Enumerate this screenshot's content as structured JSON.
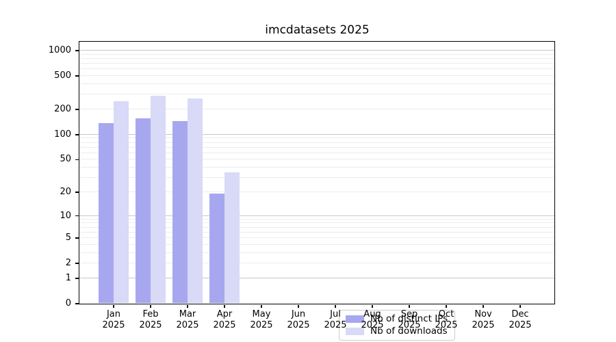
{
  "title": "imcdatasets 2025",
  "chart_data": {
    "type": "bar",
    "title": "imcdatasets 2025",
    "y_scale": "log10(value+1)",
    "ylim": [
      0,
      1270
    ],
    "y_ticks": [
      0,
      1,
      2,
      5,
      10,
      20,
      50,
      100,
      200,
      500,
      1000
    ],
    "categories": [
      "Jan",
      "Feb",
      "Mar",
      "Apr",
      "May",
      "Jun",
      "Jul",
      "Aug",
      "Sep",
      "Oct",
      "Nov",
      "Dec"
    ],
    "year_label": "2025",
    "series": [
      {
        "name": "Nb of distinct IPs",
        "color": "#a7a7f0",
        "values": [
          137,
          154,
          143,
          19,
          0,
          0,
          0,
          0,
          0,
          0,
          0,
          0
        ]
      },
      {
        "name": "Nb of downloads",
        "color": "#d9d9f8",
        "values": [
          250,
          290,
          265,
          35,
          0,
          0,
          0,
          0,
          0,
          0,
          0,
          0
        ]
      }
    ],
    "legend_position": "lower center",
    "grid": {
      "major_values": [
        1,
        10,
        100,
        1000
      ],
      "major_color": "#c6c6c6",
      "minor_color": "#ececec"
    },
    "axis_color": "#000000",
    "background": "#ffffff"
  }
}
